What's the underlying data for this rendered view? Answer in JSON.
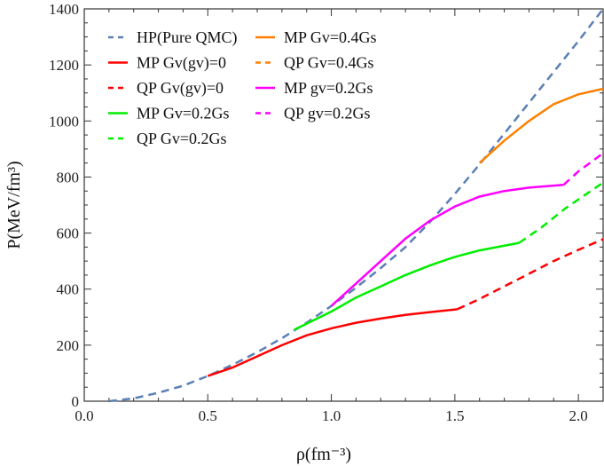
{
  "chart_data": {
    "type": "line",
    "xlabel": "ρ(fm⁻³)",
    "ylabel": "P(MeV/fm³)",
    "xlim": [
      0,
      2.1
    ],
    "ylim": [
      0,
      1400
    ],
    "xticks": [
      "0.0",
      "0.5",
      "1.0",
      "1.5",
      "2.0"
    ],
    "yticks": [
      "0",
      "200",
      "400",
      "600",
      "800",
      "1000",
      "1200",
      "1400"
    ],
    "grid": false,
    "legend_placement": "top-left",
    "series": [
      {
        "name": "HP(Pure QMC)",
        "color": "#5b7fb5",
        "dash": true,
        "x": [
          0.1,
          0.2,
          0.3,
          0.4,
          0.5,
          0.6,
          0.7,
          0.8,
          0.9,
          1.0,
          1.1,
          1.2,
          1.3,
          1.4,
          1.5,
          1.6,
          1.7,
          1.8,
          1.9,
          2.0,
          2.1
        ],
        "y": [
          0,
          10,
          30,
          55,
          90,
          130,
          175,
          225,
          280,
          340,
          405,
          475,
          550,
          640,
          740,
          845,
          955,
          1065,
          1175,
          1285,
          1400
        ]
      },
      {
        "name": "MP Gv(gv)=0",
        "color": "#ff0000",
        "dash": false,
        "x": [
          0.5,
          0.6,
          0.7,
          0.8,
          0.9,
          1.0,
          1.1,
          1.2,
          1.3,
          1.4,
          1.51
        ],
        "y": [
          90,
          120,
          160,
          200,
          235,
          260,
          280,
          295,
          308,
          318,
          328
        ]
      },
      {
        "name": "QP Gv(gv)=0",
        "color": "#ff0000",
        "dash": true,
        "x": [
          1.51,
          1.6,
          1.7,
          1.8,
          1.9,
          2.0,
          2.1
        ],
        "y": [
          328,
          365,
          410,
          455,
          500,
          540,
          578
        ]
      },
      {
        "name": "MP Gv=0.2Gs",
        "color": "#00ee00",
        "dash": false,
        "x": [
          0.85,
          1.0,
          1.1,
          1.2,
          1.3,
          1.4,
          1.5,
          1.6,
          1.76
        ],
        "y": [
          255,
          320,
          370,
          410,
          450,
          485,
          515,
          538,
          565
        ]
      },
      {
        "name": "QP Gv=0.2Gs",
        "color": "#00ee00",
        "dash": true,
        "x": [
          1.76,
          1.85,
          1.95,
          2.1
        ],
        "y": [
          565,
          620,
          690,
          780
        ]
      },
      {
        "name": "MP Gv=0.4Gs",
        "color": "#ff8000",
        "dash": false,
        "x": [
          1.6,
          1.7,
          1.8,
          1.9,
          2.0,
          2.1
        ],
        "y": [
          850,
          930,
          1000,
          1060,
          1095,
          1115
        ]
      },
      {
        "name": "QP Gv=0.4Gs",
        "color": "#ff8000",
        "dash": true,
        "x": [],
        "y": []
      },
      {
        "name": "MP gv=0.2Gs",
        "color": "#ff00ff",
        "dash": false,
        "x": [
          1.0,
          1.1,
          1.2,
          1.3,
          1.4,
          1.5,
          1.6,
          1.7,
          1.8,
          1.94
        ],
        "y": [
          340,
          420,
          500,
          580,
          645,
          695,
          730,
          750,
          762,
          772
        ]
      },
      {
        "name": "QP gv=0.2Gs",
        "color": "#ff00ff",
        "dash": true,
        "x": [
          1.94,
          2.0,
          2.1
        ],
        "y": [
          772,
          820,
          885
        ]
      }
    ],
    "legend_order": [
      0,
      1,
      2,
      3,
      4,
      5,
      6,
      7,
      8
    ]
  }
}
